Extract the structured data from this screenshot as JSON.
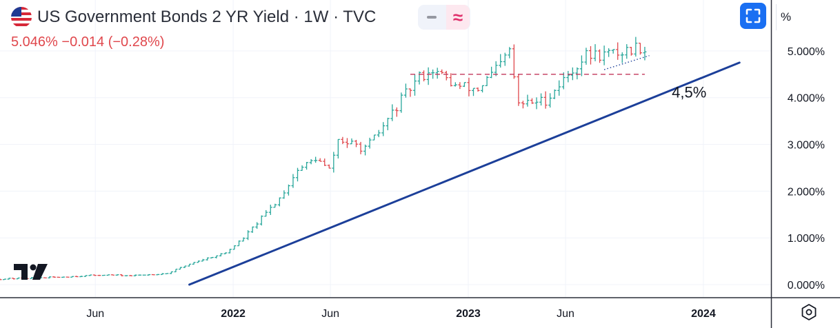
{
  "header": {
    "title": "US Government Bonds 2 YR Yield · 1W · TVC",
    "flag_icon": "us-flag-icon",
    "last_value": "5.046%",
    "change": "−0.014",
    "change_pct": "(−0.28%)"
  },
  "toolbar": {
    "percent_label": "%",
    "fullscreen_icon": "fullscreen-icon",
    "settings_icon": "gear-icon",
    "pill_icons": [
      "minus-icon",
      "approx-icon"
    ]
  },
  "colors": {
    "up": "#26a69a",
    "down": "#e0474c",
    "trendline": "#1c3f99",
    "dashed_level": "#c2365a",
    "dotted_line": "#1c3f99",
    "pill_accent": "#e0306b",
    "fullscreen_button": "#1a6ff2"
  },
  "chart_data": {
    "type": "bar",
    "subtype": "ohlc",
    "ylim": [
      -0.25,
      5.5
    ],
    "y_ticks": [
      {
        "value": 0,
        "label": "0.000%"
      },
      {
        "value": 1,
        "label": "1.000%"
      },
      {
        "value": 2,
        "label": "2.000%"
      },
      {
        "value": 3,
        "label": "3.000%"
      },
      {
        "value": 4,
        "label": "4.000%"
      },
      {
        "value": 5,
        "label": "5.000%"
      }
    ],
    "xlim": [
      "2021-01-04",
      "2024-04-15"
    ],
    "x_ticks": [
      {
        "date": "2021-06-01",
        "label": "Jun",
        "bold": false
      },
      {
        "date": "2022-01-01",
        "label": "2022",
        "bold": true
      },
      {
        "date": "2022-06-01",
        "label": "Jun",
        "bold": false
      },
      {
        "date": "2023-01-01",
        "label": "2023",
        "bold": true
      },
      {
        "date": "2023-06-01",
        "label": "Jun",
        "bold": false
      },
      {
        "date": "2024-01-01",
        "label": "2024",
        "bold": true
      }
    ],
    "grid": true,
    "series": [
      {
        "keypoints": [
          [
            "2021-01-04",
            0.12
          ],
          [
            "2021-04-05",
            0.16
          ],
          [
            "2021-06-14",
            0.21
          ],
          [
            "2021-07-26",
            0.19
          ],
          [
            "2021-09-20",
            0.24
          ],
          [
            "2021-11-01",
            0.48
          ],
          [
            "2021-12-20",
            0.68
          ],
          [
            "2022-01-17",
            1.0
          ],
          [
            "2022-03-14",
            1.85
          ],
          [
            "2022-04-11",
            2.45
          ],
          [
            "2022-05-09",
            2.7
          ],
          [
            "2022-05-30",
            2.45
          ],
          [
            "2022-06-13",
            3.1
          ],
          [
            "2022-07-25",
            2.9
          ],
          [
            "2022-08-15",
            3.25
          ],
          [
            "2022-09-19",
            3.95
          ],
          [
            "2022-10-17",
            4.45
          ],
          [
            "2022-11-07",
            4.6
          ],
          [
            "2022-12-12",
            4.25
          ],
          [
            "2023-01-16",
            4.18
          ],
          [
            "2023-02-20",
            4.7
          ],
          [
            "2023-03-06",
            5.0
          ],
          [
            "2023-03-20",
            3.85
          ],
          [
            "2023-05-01",
            3.95
          ],
          [
            "2023-06-12",
            4.6
          ],
          [
            "2023-07-03",
            4.9
          ],
          [
            "2023-08-21",
            4.95
          ],
          [
            "2023-09-25",
            5.1
          ],
          [
            "2023-10-02",
            5.046
          ]
        ]
      }
    ],
    "annotations": [
      {
        "type": "trendline",
        "from": [
          "2021-10-25",
          0.0
        ],
        "to": [
          "2024-02-26",
          4.75
        ]
      },
      {
        "type": "hline-dashed",
        "from": [
          "2022-10-03",
          4.5
        ],
        "to": [
          "2023-10-02",
          4.5
        ]
      },
      {
        "type": "dotted",
        "from": [
          "2023-07-31",
          4.6
        ],
        "to": [
          "2023-10-09",
          4.9
        ]
      },
      {
        "type": "text",
        "text": "4,5%",
        "at": [
          "2023-11-13",
          4.0
        ]
      }
    ]
  }
}
